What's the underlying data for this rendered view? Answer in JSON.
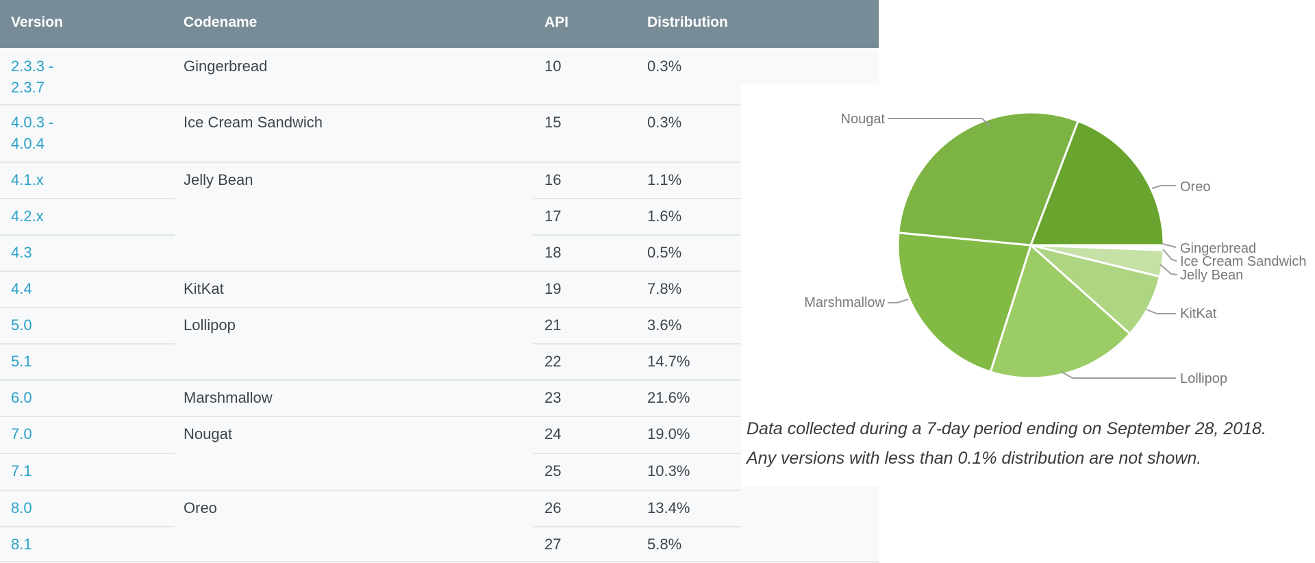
{
  "table": {
    "columns": [
      "Version",
      "Codename",
      "API",
      "Distribution"
    ],
    "rows": [
      {
        "version": [
          "2.3.3 -",
          "2.3.7"
        ],
        "codename": "Gingerbread",
        "api": "10",
        "distribution": "0.3%",
        "group_start": true
      },
      {
        "version": [
          "4.0.3 -",
          "4.0.4"
        ],
        "codename": "Ice Cream Sandwich",
        "api": "15",
        "distribution": "0.3%",
        "group_start": true
      },
      {
        "version": [
          "4.1.x"
        ],
        "codename": "Jelly Bean",
        "api": "16",
        "distribution": "1.1%",
        "group_start": true
      },
      {
        "version": [
          "4.2.x"
        ],
        "codename": "",
        "api": "17",
        "distribution": "1.6%",
        "group_start": false
      },
      {
        "version": [
          "4.3"
        ],
        "codename": "",
        "api": "18",
        "distribution": "0.5%",
        "group_start": false
      },
      {
        "version": [
          "4.4"
        ],
        "codename": "KitKat",
        "api": "19",
        "distribution": "7.8%",
        "group_start": true
      },
      {
        "version": [
          "5.0"
        ],
        "codename": "Lollipop",
        "api": "21",
        "distribution": "3.6%",
        "group_start": true
      },
      {
        "version": [
          "5.1"
        ],
        "codename": "",
        "api": "22",
        "distribution": "14.7%",
        "group_start": false
      },
      {
        "version": [
          "6.0"
        ],
        "codename": "Marshmallow",
        "api": "23",
        "distribution": "21.6%",
        "group_start": true
      },
      {
        "version": [
          "7.0"
        ],
        "codename": "Nougat",
        "api": "24",
        "distribution": "19.0%",
        "group_start": true
      },
      {
        "version": [
          "7.1"
        ],
        "codename": "",
        "api": "25",
        "distribution": "10.3%",
        "group_start": false
      },
      {
        "version": [
          "8.0"
        ],
        "codename": "Oreo",
        "api": "26",
        "distribution": "13.4%",
        "group_start": true
      },
      {
        "version": [
          "8.1"
        ],
        "codename": "",
        "api": "27",
        "distribution": "5.8%",
        "group_start": false
      }
    ],
    "header_bg": "#788c98",
    "link_color": "#2aa1c8"
  },
  "chart_data": {
    "type": "pie",
    "start_angle_deg": 0,
    "direction": "clockwise",
    "legend_position": "outside-callouts",
    "slices": [
      {
        "label": "Gingerbread",
        "value": 0.3,
        "color": "#eef3e1"
      },
      {
        "label": "Ice Cream Sandwich",
        "value": 0.3,
        "color": "#dcedc8"
      },
      {
        "label": "Jelly Bean",
        "value": 3.2,
        "color": "#c5e1a5"
      },
      {
        "label": "KitKat",
        "value": 7.8,
        "color": "#aed581"
      },
      {
        "label": "Lollipop",
        "value": 18.3,
        "color": "#9ccc65"
      },
      {
        "label": "Marshmallow",
        "value": 21.6,
        "color": "#83ba46"
      },
      {
        "label": "Nougat",
        "value": 29.3,
        "color": "#7cb342"
      },
      {
        "label": "Oreo",
        "value": 19.2,
        "color": "#68a42e"
      }
    ]
  },
  "note": {
    "line1": "Data collected during a 7-day period ending on September 28, 2018.",
    "line2": "Any versions with less than 0.1% distribution are not shown."
  }
}
